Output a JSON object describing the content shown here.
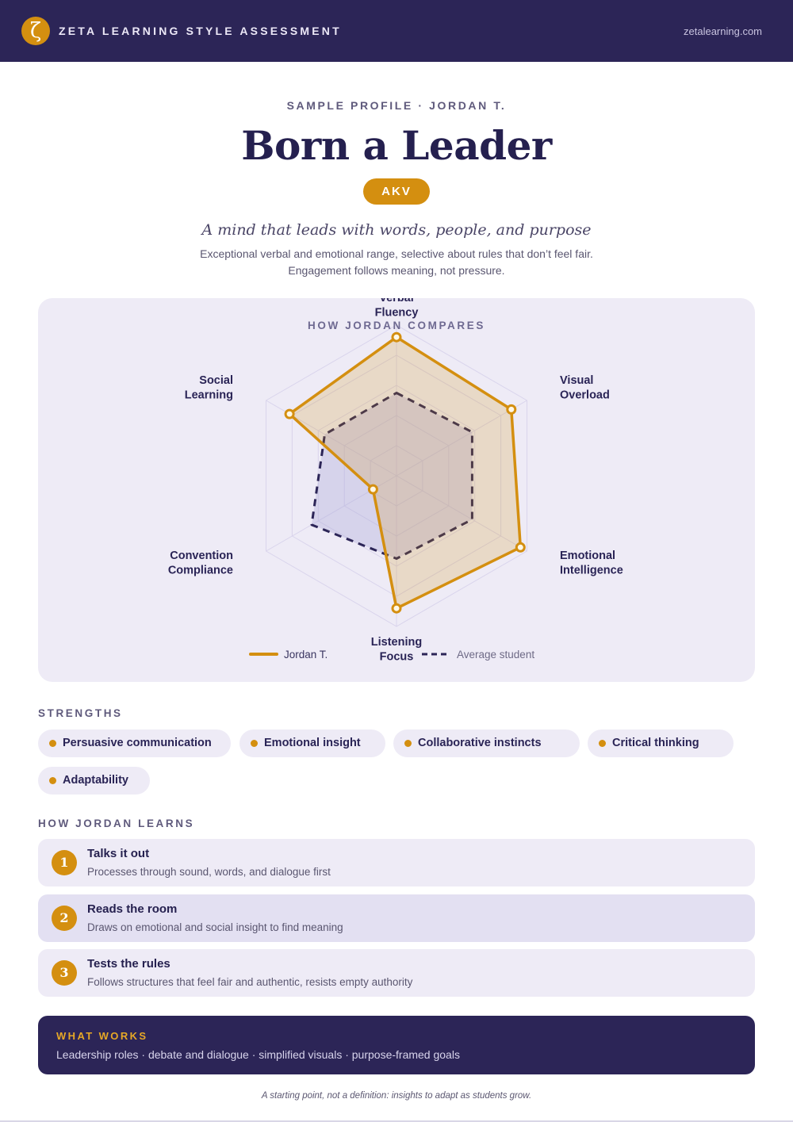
{
  "header": {
    "logo_glyph": "ζ",
    "brand": "ZETA LEARNING STYLE ASSESSMENT",
    "site": "zetalearning.com"
  },
  "profile": {
    "eyebrow": "SAMPLE PROFILE · JORDAN T.",
    "title": "Born a Leader",
    "code": "AKV",
    "tagline": "A mind that leads with words, people, and purpose",
    "description_line1": "Exceptional verbal and emotional range, selective about rules that don’t feel fair.",
    "description_line2": "Engagement follows meaning, not pressure."
  },
  "chart_data": {
    "type": "radar",
    "title": "HOW JORDAN COMPARES",
    "axes": [
      "Verbal Fluency",
      "Visual Overload",
      "Emotional Intelligence",
      "Listening Focus",
      "Convention Compliance",
      "Social Learning"
    ],
    "axis_label_lines": [
      [
        "Verbal",
        "Fluency"
      ],
      [
        "Visual",
        "Overload"
      ],
      [
        "Emotional",
        "Intelligence"
      ],
      [
        "Listening",
        "Focus"
      ],
      [
        "Convention",
        "Compliance"
      ],
      [
        "Social",
        "Learning"
      ]
    ],
    "range": [
      0,
      100
    ],
    "grid_levels": 5,
    "series": [
      {
        "name": "Jordan T.",
        "values": [
          92,
          88,
          95,
          88,
          18,
          82
        ],
        "color": "#d48f10",
        "style": "solid"
      },
      {
        "name": "Average student",
        "values": [
          55,
          58,
          58,
          55,
          65,
          55
        ],
        "color": "#2c2557",
        "style": "dashed"
      }
    ],
    "legend_position": "bottom"
  },
  "strengths": {
    "heading": "STRENGTHS",
    "items": [
      "Persuasive communication",
      "Emotional insight",
      "Collaborative instincts",
      "Critical thinking",
      "Adaptability"
    ]
  },
  "learning": {
    "heading": "HOW JORDAN LEARNS",
    "items": [
      {
        "num": "1",
        "title": "Talks it out",
        "subtitle": "Processes through sound, words, and dialogue first"
      },
      {
        "num": "2",
        "title": "Reads the room",
        "subtitle": "Draws on emotional and social insight to find meaning"
      },
      {
        "num": "3",
        "title": "Tests the rules",
        "subtitle": "Follows structures that feel fair and authentic, resists empty authority"
      }
    ]
  },
  "what_works": {
    "heading": "WHAT WORKS",
    "body": "Leadership roles · debate and dialogue · simplified visuals · purpose-framed goals"
  },
  "footer": "A starting point, not a definition: insights to adapt as students grow."
}
